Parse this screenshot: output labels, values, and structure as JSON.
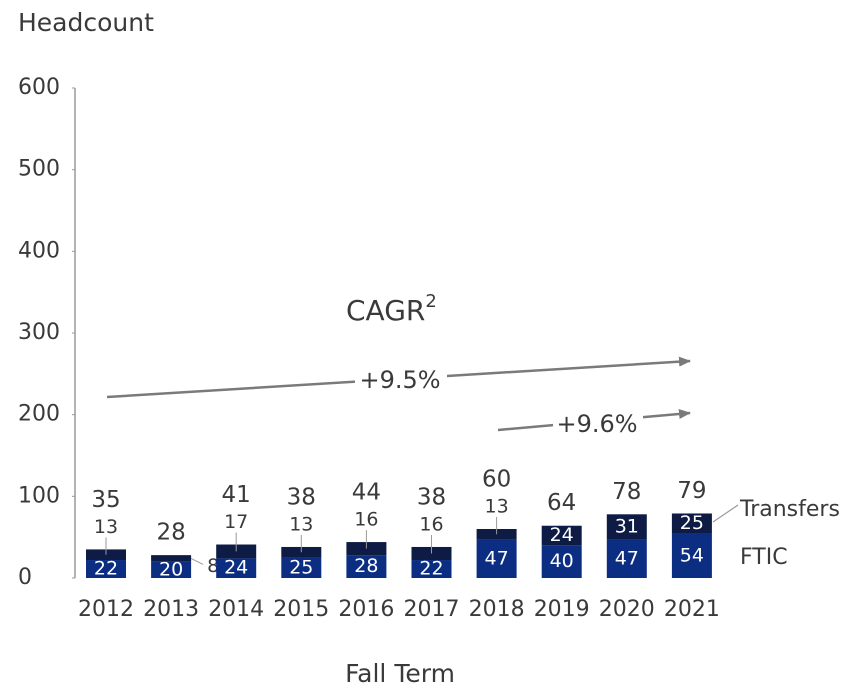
{
  "chart_data": {
    "type": "stacked_bar",
    "y_axis_label": "Headcount",
    "x_axis_label": "Fall Term",
    "categories": [
      "2012",
      "2013",
      "2014",
      "2015",
      "2016",
      "2017",
      "2018",
      "2019",
      "2020",
      "2021"
    ],
    "series": [
      {
        "name": "FTIC",
        "color": "#0b2d82",
        "values": [
          22,
          20,
          24,
          25,
          28,
          22,
          47,
          40,
          47,
          54
        ]
      },
      {
        "name": "Transfers",
        "color": "#0d1b45",
        "values": [
          13,
          8,
          17,
          13,
          16,
          16,
          13,
          24,
          31,
          25
        ]
      }
    ],
    "totals": [
      35,
      28,
      41,
      38,
      44,
      38,
      60,
      64,
      78,
      79
    ],
    "ylim": [
      0,
      600
    ],
    "yticks": [
      0,
      100,
      200,
      300,
      400,
      500,
      600
    ],
    "grid": false,
    "annotations": {
      "cagr": "CAGR",
      "cagr_superscript": "2",
      "growth_all": "+9.5%",
      "growth_recent": "+9.6%"
    }
  }
}
